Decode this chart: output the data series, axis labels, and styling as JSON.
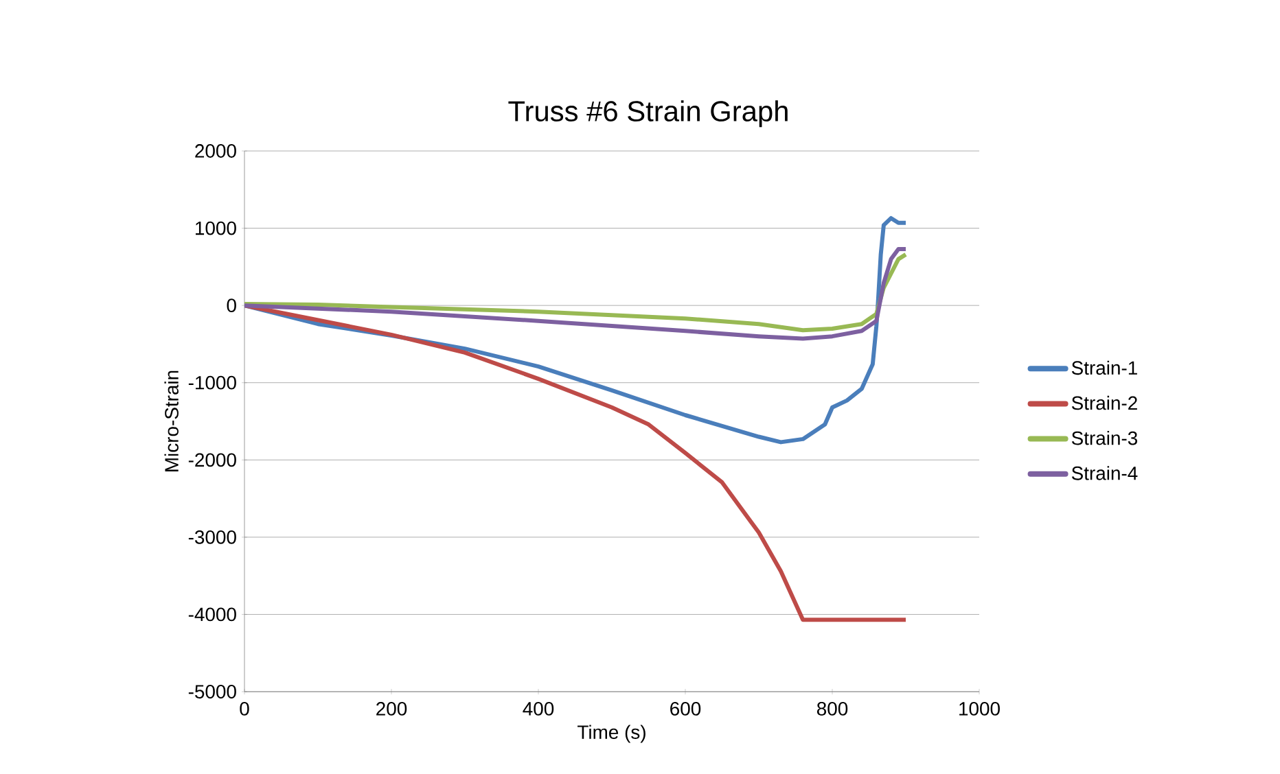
{
  "chart_data": {
    "type": "line",
    "title": "Truss #6 Strain Graph",
    "xlabel": "Time (s)",
    "ylabel": "Micro-Strain",
    "xlim": [
      0,
      1000
    ],
    "xticks": [
      0,
      200,
      400,
      600,
      800,
      1000
    ],
    "ylim": [
      -5000,
      2000
    ],
    "yticks": [
      -5000,
      -4000,
      -3000,
      -2000,
      -1000,
      0,
      1000,
      2000
    ],
    "grid": "y",
    "legend": "right",
    "marker": "none",
    "line_style": "solid",
    "series": [
      {
        "name": "Strain-1",
        "color": "#4a7ebb",
        "x": [
          0,
          100,
          200,
          300,
          400,
          500,
          600,
          700,
          730,
          760,
          790,
          800,
          820,
          840,
          855,
          860,
          862,
          866,
          870,
          880,
          890,
          900
        ],
        "values": [
          0,
          -240,
          -390,
          -560,
          -790,
          -1100,
          -1420,
          -1700,
          -1770,
          -1730,
          -1540,
          -1320,
          -1230,
          -1080,
          -760,
          -270,
          0,
          660,
          1040,
          1130,
          1070,
          1070
        ]
      },
      {
        "name": "Strain-2",
        "color": "#be4b48",
        "x": [
          0,
          100,
          200,
          300,
          400,
          500,
          550,
          600,
          650,
          700,
          730,
          760,
          900
        ],
        "values": [
          0,
          -190,
          -380,
          -610,
          -950,
          -1320,
          -1540,
          -1910,
          -2290,
          -2940,
          -3440,
          -4070,
          -4070
        ]
      },
      {
        "name": "Strain-3",
        "color": "#98b954",
        "x": [
          0,
          100,
          200,
          400,
          600,
          700,
          760,
          800,
          840,
          860,
          870,
          890,
          900
        ],
        "values": [
          20,
          10,
          -20,
          -80,
          -170,
          -240,
          -320,
          -300,
          -240,
          -110,
          230,
          600,
          660
        ]
      },
      {
        "name": "Strain-4",
        "color": "#7d60a0",
        "x": [
          0,
          100,
          200,
          400,
          600,
          700,
          760,
          800,
          840,
          860,
          870,
          880,
          890,
          900
        ],
        "values": [
          0,
          -40,
          -80,
          -200,
          -330,
          -400,
          -430,
          -400,
          -330,
          -200,
          290,
          600,
          730,
          730
        ]
      }
    ]
  }
}
